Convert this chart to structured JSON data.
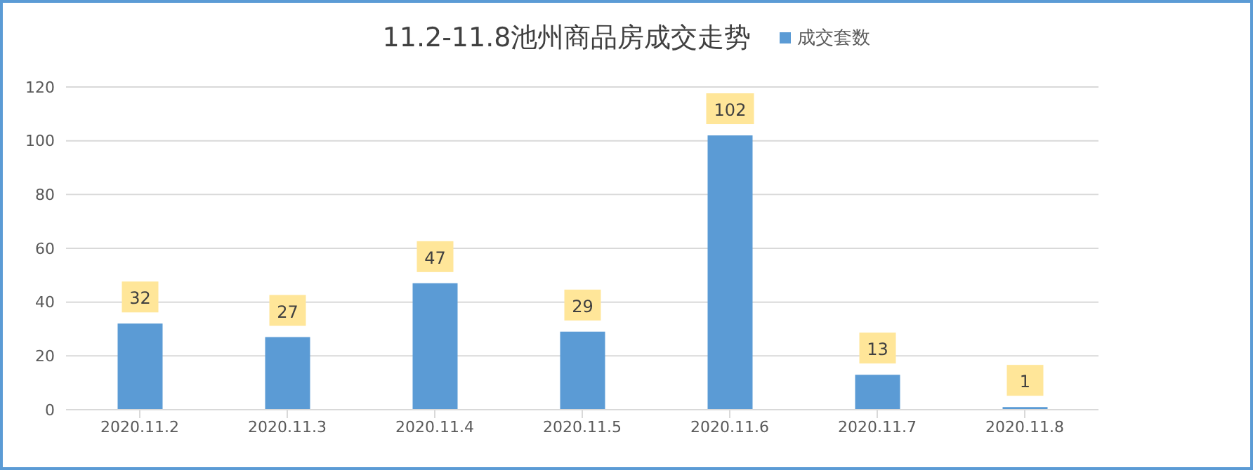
{
  "chart_data": {
    "type": "bar",
    "title": "11.2-11.8池州商品房成交走势",
    "categories": [
      "2020.11.2",
      "2020.11.3",
      "2020.11.4",
      "2020.11.5",
      "2020.11.6",
      "2020.11.7",
      "2020.11.8"
    ],
    "series": [
      {
        "name": "成交套数",
        "color": "#5b9bd5",
        "values": [
          32,
          27,
          47,
          29,
          102,
          13,
          1
        ]
      }
    ],
    "ylim": [
      0,
      120
    ],
    "yticks": [
      0,
      20,
      40,
      60,
      80,
      100,
      120
    ],
    "grid": "y",
    "legend": "top right",
    "data_labels": true
  }
}
